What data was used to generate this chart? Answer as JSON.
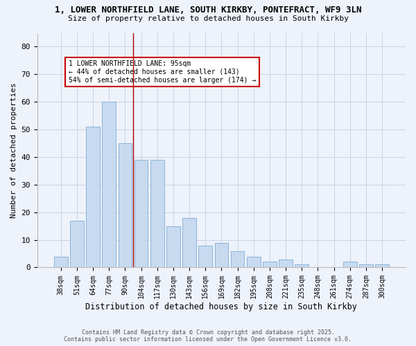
{
  "title_line1": "1, LOWER NORTHFIELD LANE, SOUTH KIRKBY, PONTEFRACT, WF9 3LN",
  "title_line2": "Size of property relative to detached houses in South Kirkby",
  "xlabel": "Distribution of detached houses by size in South Kirkby",
  "ylabel": "Number of detached properties",
  "categories": [
    "38sqm",
    "51sqm",
    "64sqm",
    "77sqm",
    "90sqm",
    "104sqm",
    "117sqm",
    "130sqm",
    "143sqm",
    "156sqm",
    "169sqm",
    "182sqm",
    "195sqm",
    "208sqm",
    "221sqm",
    "235sqm",
    "248sqm",
    "261sqm",
    "274sqm",
    "287sqm",
    "300sqm"
  ],
  "values": [
    4,
    17,
    51,
    60,
    45,
    39,
    39,
    15,
    18,
    8,
    9,
    6,
    4,
    2,
    3,
    1,
    0,
    0,
    2,
    1,
    1
  ],
  "bar_color": "#c8daf0",
  "bar_edge_color": "#8ab4d8",
  "grid_color": "#c8d4e8",
  "background_color": "#eef2fa",
  "red_line_x": 4.5,
  "annotation_text": "1 LOWER NORTHFIELD LANE: 95sqm\n← 44% of detached houses are smaller (143)\n54% of semi-detached houses are larger (174) →",
  "annotation_box_color": "#ffffff",
  "annotation_box_edge": "#cc0000",
  "footer_text": "Contains HM Land Registry data © Crown copyright and database right 2025.\nContains public sector information licensed under the Open Government Licence v3.0.",
  "ylim": [
    0,
    85
  ],
  "yticks": [
    0,
    10,
    20,
    30,
    40,
    50,
    60,
    70,
    80
  ]
}
